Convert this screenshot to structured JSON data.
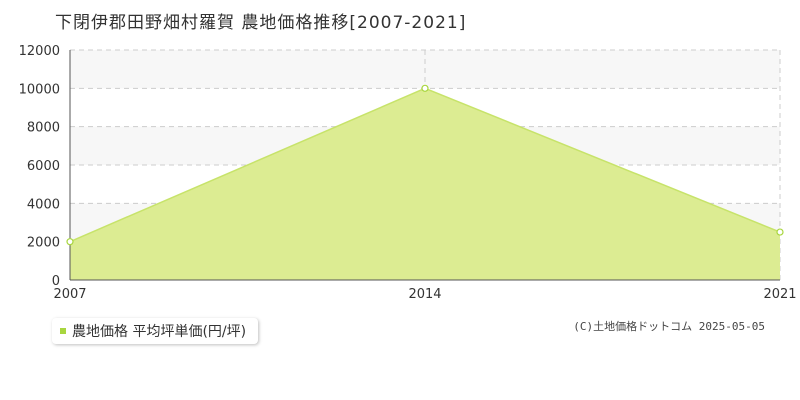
{
  "title": "下閉伊郡田野畑村羅賀 農地価格推移[2007-2021]",
  "legend": {
    "label": "農地価格 平均坪単価(円/坪)"
  },
  "copyright": "(C)土地価格ドットコム 2025-05-05",
  "colors": {
    "fill": "#dcec92",
    "line": "#c7e36a",
    "marker": "#a8d63f",
    "grid": "#cccccc",
    "band": "#f7f7f7"
  },
  "chart_data": {
    "type": "area",
    "x": [
      2007,
      2014,
      2021
    ],
    "series": [
      {
        "name": "農地価格 平均坪単価(円/坪)",
        "values": [
          2000,
          10000,
          2500
        ]
      }
    ],
    "xlim": [
      2007,
      2021
    ],
    "ylim": [
      0,
      12000
    ],
    "yticks": [
      0,
      2000,
      4000,
      6000,
      8000,
      10000,
      12000
    ],
    "xticks": [
      2007,
      2014,
      2021
    ],
    "grid": true,
    "legend_position": "bottom-left"
  }
}
